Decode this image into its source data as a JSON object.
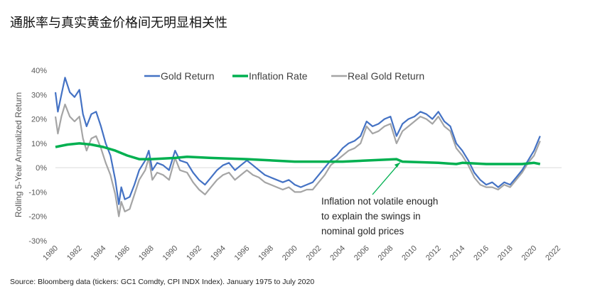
{
  "page_title": "通胀率与真实黄金价格间无明显相关性",
  "source": "Source: Bloomberg data (tickers: GC1 Comdty, CPI INDX Index). January 1975 to July 2020",
  "chart_data": {
    "type": "line",
    "title": "",
    "xlabel": "",
    "ylabel": "Rolling 5-Year Annualized Return",
    "xlim": [
      1980,
      2022
    ],
    "ylim": [
      -30,
      40
    ],
    "x_ticks": [
      "1980",
      "1982",
      "1984",
      "1986",
      "1988",
      "1990",
      "1992",
      "1994",
      "1996",
      "1998",
      "2000",
      "2002",
      "2004",
      "2006",
      "2008",
      "2010",
      "2012",
      "2014",
      "2016",
      "2018",
      "2020",
      "2022"
    ],
    "y_ticks": [
      "40%",
      "30%",
      "20%",
      "10%",
      "0%",
      "-10%",
      "-20%",
      "-30%"
    ],
    "grid": "zero line only",
    "legend_position": "top",
    "series": [
      {
        "name": "Gold Return",
        "color": "#4472C4",
        "points": [
          [
            1980,
            31
          ],
          [
            1980.2,
            23
          ],
          [
            1980.5,
            30
          ],
          [
            1980.8,
            37
          ],
          [
            1981.2,
            31
          ],
          [
            1981.6,
            29
          ],
          [
            1982,
            32
          ],
          [
            1982.3,
            22
          ],
          [
            1982.6,
            17
          ],
          [
            1983,
            22
          ],
          [
            1983.4,
            23
          ],
          [
            1983.8,
            17
          ],
          [
            1984.2,
            10
          ],
          [
            1984.6,
            5
          ],
          [
            1985,
            -5
          ],
          [
            1985.3,
            -15
          ],
          [
            1985.5,
            -8
          ],
          [
            1985.8,
            -13
          ],
          [
            1986.2,
            -12
          ],
          [
            1986.6,
            -7
          ],
          [
            1987,
            -1
          ],
          [
            1987.5,
            3
          ],
          [
            1987.8,
            7
          ],
          [
            1988.1,
            -1
          ],
          [
            1988.5,
            2
          ],
          [
            1989,
            1
          ],
          [
            1989.5,
            -1
          ],
          [
            1990,
            7
          ],
          [
            1990.4,
            3
          ],
          [
            1991,
            2
          ],
          [
            1991.5,
            -2
          ],
          [
            1992,
            -5
          ],
          [
            1992.5,
            -7
          ],
          [
            1993,
            -4
          ],
          [
            1993.5,
            -1
          ],
          [
            1994,
            1
          ],
          [
            1994.5,
            2
          ],
          [
            1995,
            -1
          ],
          [
            1995.5,
            1
          ],
          [
            1996,
            3
          ],
          [
            1996.5,
            1
          ],
          [
            1997,
            -1
          ],
          [
            1997.5,
            -3
          ],
          [
            1998,
            -4
          ],
          [
            1998.5,
            -5
          ],
          [
            1999,
            -6
          ],
          [
            1999.5,
            -5
          ],
          [
            2000,
            -7
          ],
          [
            2000.5,
            -8
          ],
          [
            2001,
            -7
          ],
          [
            2001.5,
            -6
          ],
          [
            2002,
            -3
          ],
          [
            2002.5,
            0
          ],
          [
            2003,
            3
          ],
          [
            2003.5,
            5
          ],
          [
            2004,
            8
          ],
          [
            2004.5,
            10
          ],
          [
            2005,
            11
          ],
          [
            2005.5,
            13
          ],
          [
            2006,
            19
          ],
          [
            2006.5,
            17
          ],
          [
            2007,
            18
          ],
          [
            2007.5,
            20
          ],
          [
            2008,
            21
          ],
          [
            2008.5,
            13
          ],
          [
            2009,
            18
          ],
          [
            2009.5,
            20
          ],
          [
            2010,
            21
          ],
          [
            2010.5,
            23
          ],
          [
            2011,
            22
          ],
          [
            2011.5,
            20
          ],
          [
            2012,
            23
          ],
          [
            2012.5,
            19
          ],
          [
            2013,
            17
          ],
          [
            2013.5,
            10
          ],
          [
            2014,
            7
          ],
          [
            2014.5,
            3
          ],
          [
            2015,
            -2
          ],
          [
            2015.5,
            -5
          ],
          [
            2016,
            -7
          ],
          [
            2016.5,
            -6
          ],
          [
            2017,
            -8
          ],
          [
            2017.5,
            -6
          ],
          [
            2018,
            -7
          ],
          [
            2018.5,
            -4
          ],
          [
            2019,
            -1
          ],
          [
            2019.5,
            3
          ],
          [
            2020,
            7
          ],
          [
            2020.5,
            13
          ]
        ]
      },
      {
        "name": "Inflation Rate",
        "color": "#00B050",
        "points": [
          [
            1980,
            8.5
          ],
          [
            1981,
            9.5
          ],
          [
            1982,
            10
          ],
          [
            1983,
            9.5
          ],
          [
            1984,
            8.5
          ],
          [
            1985,
            7
          ],
          [
            1986,
            5
          ],
          [
            1987,
            3.5
          ],
          [
            1988,
            3.5
          ],
          [
            1990,
            4
          ],
          [
            1991,
            4.5
          ],
          [
            1993,
            4
          ],
          [
            1996,
            3.5
          ],
          [
            2000,
            2.5
          ],
          [
            2004,
            2.5
          ],
          [
            2008.5,
            3.5
          ],
          [
            2009,
            2.5
          ],
          [
            2012,
            2
          ],
          [
            2013.5,
            1.5
          ],
          [
            2014,
            2
          ],
          [
            2016,
            1.5
          ],
          [
            2019,
            1.5
          ],
          [
            2020,
            2
          ],
          [
            2020.5,
            1.5
          ]
        ]
      },
      {
        "name": "Real Gold Return",
        "color": "#A5A5A5",
        "points": [
          [
            1980,
            21
          ],
          [
            1980.2,
            14
          ],
          [
            1980.5,
            21
          ],
          [
            1980.8,
            26
          ],
          [
            1981.2,
            21
          ],
          [
            1981.6,
            19
          ],
          [
            1982,
            21
          ],
          [
            1982.3,
            12
          ],
          [
            1982.6,
            7
          ],
          [
            1983,
            12
          ],
          [
            1983.4,
            13
          ],
          [
            1983.8,
            8
          ],
          [
            1984.2,
            2
          ],
          [
            1984.6,
            -3
          ],
          [
            1985,
            -11
          ],
          [
            1985.3,
            -20
          ],
          [
            1985.5,
            -14
          ],
          [
            1985.8,
            -18
          ],
          [
            1986.2,
            -17
          ],
          [
            1986.6,
            -11
          ],
          [
            1987,
            -5
          ],
          [
            1987.5,
            -1
          ],
          [
            1987.8,
            4
          ],
          [
            1988.1,
            -5
          ],
          [
            1988.5,
            -2
          ],
          [
            1989,
            -3
          ],
          [
            1989.5,
            -5
          ],
          [
            1990,
            4
          ],
          [
            1990.4,
            -1
          ],
          [
            1991,
            -2
          ],
          [
            1991.5,
            -6
          ],
          [
            1992,
            -9
          ],
          [
            1992.5,
            -11
          ],
          [
            1993,
            -8
          ],
          [
            1993.5,
            -5
          ],
          [
            1994,
            -3
          ],
          [
            1994.5,
            -2
          ],
          [
            1995,
            -5
          ],
          [
            1995.5,
            -3
          ],
          [
            1996,
            -1
          ],
          [
            1996.5,
            -3
          ],
          [
            1997,
            -4
          ],
          [
            1997.5,
            -6
          ],
          [
            1998,
            -7
          ],
          [
            1998.5,
            -8
          ],
          [
            1999,
            -9
          ],
          [
            1999.5,
            -8
          ],
          [
            2000,
            -10
          ],
          [
            2000.5,
            -10
          ],
          [
            2001,
            -9
          ],
          [
            2001.5,
            -9
          ],
          [
            2002,
            -6
          ],
          [
            2002.5,
            -3
          ],
          [
            2003,
            1
          ],
          [
            2003.5,
            3
          ],
          [
            2004,
            5
          ],
          [
            2004.5,
            7
          ],
          [
            2005,
            8
          ],
          [
            2005.5,
            10
          ],
          [
            2006,
            17
          ],
          [
            2006.5,
            14
          ],
          [
            2007,
            15
          ],
          [
            2007.5,
            17
          ],
          [
            2008,
            18
          ],
          [
            2008.5,
            10
          ],
          [
            2009,
            15
          ],
          [
            2009.5,
            17
          ],
          [
            2010,
            19
          ],
          [
            2010.5,
            21
          ],
          [
            2011,
            20
          ],
          [
            2011.5,
            18
          ],
          [
            2012,
            21
          ],
          [
            2012.5,
            17
          ],
          [
            2013,
            15
          ],
          [
            2013.5,
            8
          ],
          [
            2014,
            5
          ],
          [
            2014.5,
            1
          ],
          [
            2015,
            -4
          ],
          [
            2015.5,
            -7
          ],
          [
            2016,
            -8
          ],
          [
            2016.5,
            -8
          ],
          [
            2017,
            -9
          ],
          [
            2017.5,
            -7
          ],
          [
            2018,
            -8
          ],
          [
            2018.5,
            -5
          ],
          [
            2019,
            -2
          ],
          [
            2019.5,
            2
          ],
          [
            2020,
            5
          ],
          [
            2020.5,
            11
          ]
        ]
      }
    ],
    "annotation": {
      "lines": [
        "Inflation not volatile enough",
        "to explain the swings in",
        "nominal gold prices"
      ],
      "arrow_to": [
        2008.8,
        3.3
      ],
      "color": "#00B050"
    }
  }
}
